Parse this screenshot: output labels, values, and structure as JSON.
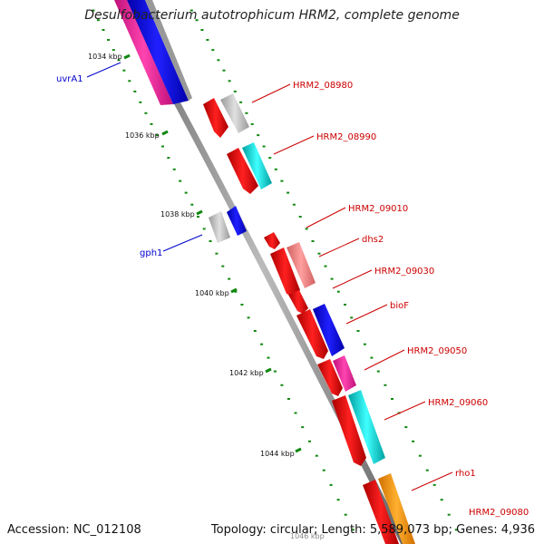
{
  "title": "Desulfobacterium autotrophicum HRM2, complete genome",
  "footer": {
    "accession": "Accession: NC_012108",
    "summary": "Topology: circular; Length: 5,589,073 bp; Genes: 4,936"
  },
  "kbp_ticks": [
    {
      "label": "1034 kbp",
      "pos": 1034
    },
    {
      "label": "1036 kbp",
      "pos": 1036
    },
    {
      "label": "1038 kbp",
      "pos": 1038
    },
    {
      "label": "1040 kbp",
      "pos": 1040
    },
    {
      "label": "1042 kbp",
      "pos": 1042
    },
    {
      "label": "1044 kbp",
      "pos": 1044
    },
    {
      "label": "1046 kbp",
      "pos": 1046
    }
  ],
  "genes": [
    {
      "name": "uvrA1",
      "strand": "minus",
      "color": "#0000ee",
      "label_color": "#0000cc"
    },
    {
      "name": "HRM2_08980",
      "strand": "plus",
      "color": "#ee0000",
      "label_color": "#cc0000"
    },
    {
      "name": "HRM2_08990",
      "strand": "plus",
      "color": "#ee0000",
      "label_color": "#cc0000"
    },
    {
      "name": "gph1",
      "strand": "minus",
      "color": "#0000ee",
      "label_color": "#0000cc"
    },
    {
      "name": "HRM2_09010",
      "strand": "plus",
      "color": "#ee0000",
      "label_color": "#cc0000"
    },
    {
      "name": "dhs2",
      "strand": "plus",
      "color": "#ee0000",
      "label_color": "#cc0000"
    },
    {
      "name": "HRM2_09030",
      "strand": "plus",
      "color": "#ee0000",
      "label_color": "#cc0000"
    },
    {
      "name": "bioF",
      "strand": "plus",
      "color": "#ee0000",
      "label_color": "#cc0000"
    },
    {
      "name": "HRM2_09050",
      "strand": "plus",
      "color": "#ee0000",
      "label_color": "#cc0000"
    },
    {
      "name": "HRM2_09060",
      "strand": "plus",
      "color": "#ee0000",
      "label_color": "#cc0000"
    },
    {
      "name": "rho1",
      "strand": "plus",
      "color": "#ee0000",
      "label_color": "#cc0000"
    },
    {
      "name": "HRM2_09080",
      "strand": "plus",
      "color": "#ee0000",
      "label_color": "#cc0000"
    }
  ],
  "colors": {
    "backbone": "#888888",
    "tick_dots": "#118811",
    "plus_strand": "#ee0000",
    "minus_strand": "#0000ee",
    "cog_grey": "#bbbbbb",
    "cog_cyan": "#00cccc",
    "cog_magenta": "#ee2299",
    "cog_salmon": "#ee8080",
    "cog_orange": "#ff9900"
  }
}
